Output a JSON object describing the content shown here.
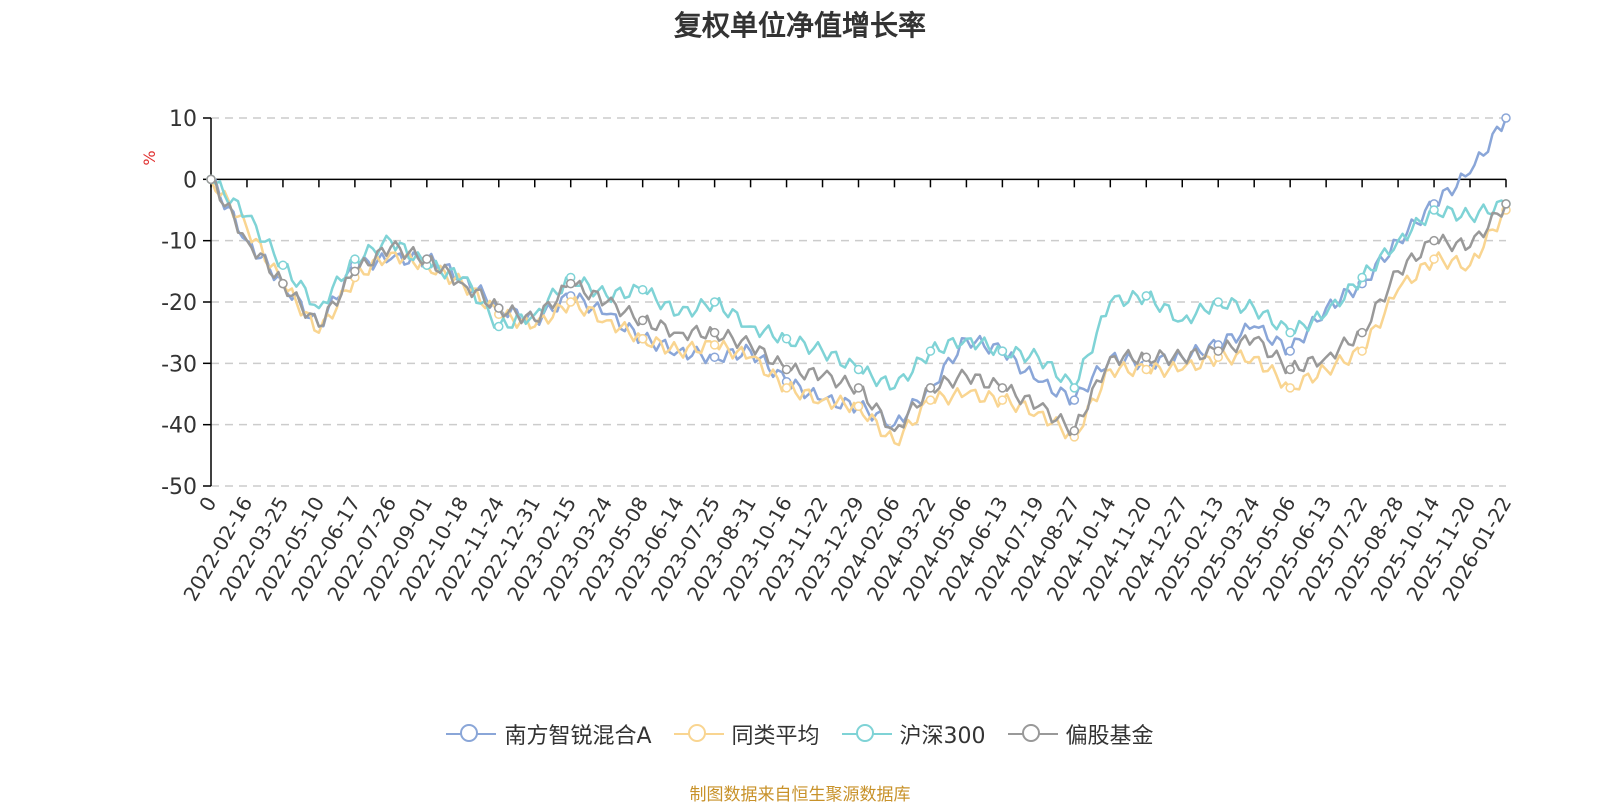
{
  "colors": {
    "fund": "#8aa6d8",
    "peer_avg": "#f9d591",
    "hs300": "#7fd3d6",
    "equity_fund": "#999999",
    "grid": "#cccccc",
    "axis": "#000000",
    "unit": "#e03030"
  },
  "legend": [
    {
      "name": "南方智锐混合A",
      "color": "#8aa6d8"
    },
    {
      "name": "同类平均",
      "color": "#f9d591"
    },
    {
      "name": "沪深300",
      "color": "#7fd3d6"
    },
    {
      "name": "偏股基金",
      "color": "#999999"
    }
  ],
  "source_note": "制图数据来自恒生聚源数据库",
  "chart_data": {
    "type": "line",
    "title": "复权单位净值增长率",
    "ylabel": "%",
    "ylim": [
      -50,
      10
    ],
    "yticks": [
      10,
      0,
      -10,
      -20,
      -30,
      -40,
      -50
    ],
    "grid": true,
    "legend_position": "bottom",
    "x_labels": [
      "0",
      "2022-02-16",
      "2022-03-25",
      "2022-05-10",
      "2022-06-17",
      "2022-07-26",
      "2022-09-01",
      "2022-10-18",
      "2022-11-24",
      "2022-12-31",
      "2023-02-15",
      "2023-03-24",
      "2023-05-08",
      "2023-06-14",
      "2023-07-25",
      "2023-08-31",
      "2023-10-16",
      "2023-11-22",
      "2023-12-29",
      "2024-02-06",
      "2024-03-22",
      "2024-05-06",
      "2024-06-13",
      "2024-07-19",
      "2024-08-27",
      "2024-10-14",
      "2024-11-20",
      "2024-12-27",
      "2025-02-13",
      "2025-03-24",
      "2025-05-06",
      "2025-06-13",
      "2025-07-22",
      "2025-08-28",
      "2025-10-14",
      "2025-11-20",
      "2026-01-22"
    ],
    "series": [
      {
        "name": "南方智锐混合A",
        "values": [
          0,
          -10,
          -17,
          -24,
          -14,
          -13,
          -13,
          -16,
          -21,
          -23,
          -19,
          -22,
          -26,
          -28,
          -29,
          -28,
          -33,
          -36,
          -37,
          -40,
          -34,
          -26,
          -28,
          -33,
          -36,
          -29,
          -30,
          -29,
          -27,
          -24,
          -28,
          -21,
          -17,
          -10,
          -4,
          1,
          10
        ]
      },
      {
        "name": "同类平均",
        "values": [
          0,
          -8,
          -17,
          -25,
          -16,
          -12,
          -14,
          -17,
          -22,
          -24,
          -20,
          -23,
          -26,
          -28,
          -27,
          -29,
          -34,
          -36,
          -37,
          -43,
          -36,
          -35,
          -36,
          -38,
          -42,
          -31,
          -31,
          -31,
          -29,
          -29,
          -34,
          -31,
          -28,
          -18,
          -13,
          -14,
          -5
        ]
      },
      {
        "name": "沪深300",
        "values": [
          0,
          -6,
          -14,
          -21,
          -13,
          -10,
          -14,
          -16,
          -24,
          -22,
          -16,
          -19,
          -18,
          -22,
          -20,
          -24,
          -26,
          -28,
          -31,
          -34,
          -28,
          -26,
          -28,
          -29,
          -34,
          -20,
          -19,
          -23,
          -20,
          -21,
          -25,
          -22,
          -16,
          -10,
          -5,
          -6,
          -4
        ]
      },
      {
        "name": "偏股基金",
        "values": [
          0,
          -10,
          -17,
          -24,
          -15,
          -11,
          -13,
          -17,
          -21,
          -23,
          -17,
          -20,
          -23,
          -25,
          -25,
          -27,
          -31,
          -32,
          -34,
          -41,
          -34,
          -32,
          -34,
          -37,
          -41,
          -29,
          -29,
          -29,
          -28,
          -26,
          -31,
          -29,
          -25,
          -15,
          -10,
          -11,
          -4
        ]
      }
    ]
  }
}
